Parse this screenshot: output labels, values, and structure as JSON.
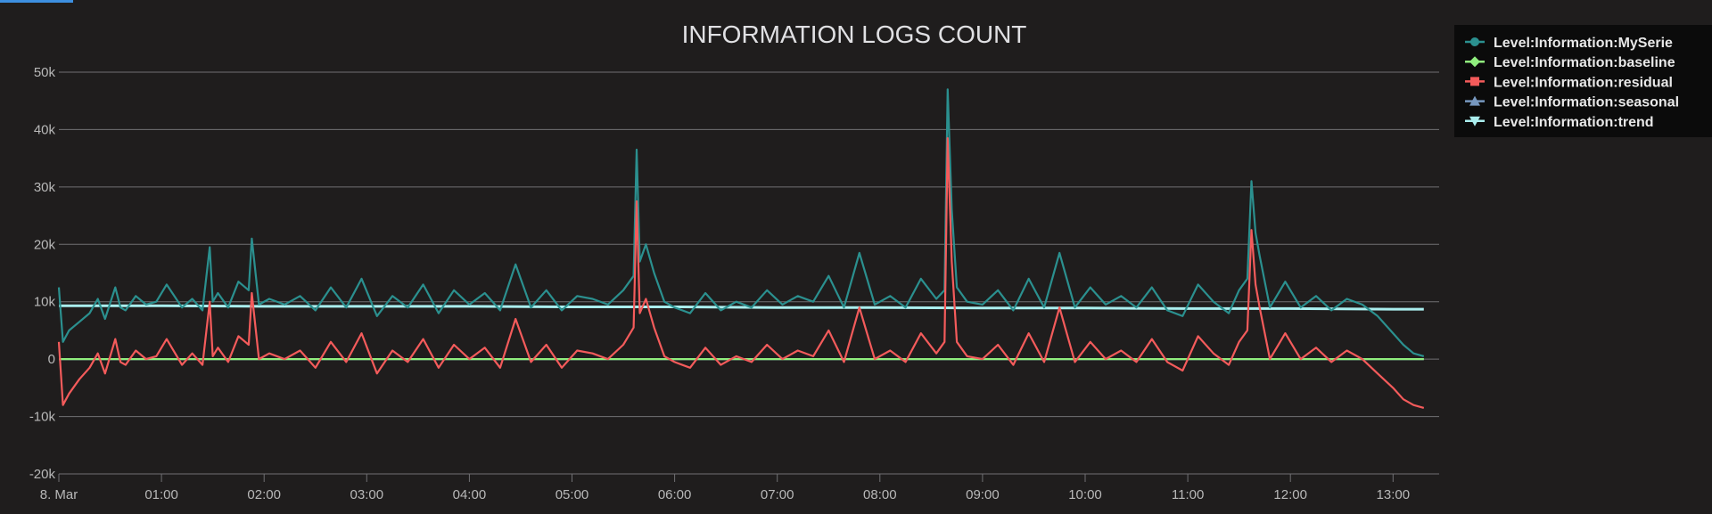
{
  "chart_data": {
    "type": "line",
    "title": "INFORMATION LOGS COUNT",
    "xlabel": "",
    "ylabel": "",
    "ylim": [
      -20000,
      50000
    ],
    "y_ticks": [
      "-20k",
      "-10k",
      "0",
      "10k",
      "20k",
      "30k",
      "40k",
      "50k"
    ],
    "y_tick_values": [
      -20000,
      -10000,
      0,
      10000,
      20000,
      30000,
      40000,
      50000
    ],
    "x_ticks": [
      "8. Mar",
      "01:00",
      "02:00",
      "03:00",
      "04:00",
      "05:00",
      "06:00",
      "07:00",
      "08:00",
      "09:00",
      "10:00",
      "11:00",
      "12:00",
      "13:00"
    ],
    "x_tick_values": [
      0,
      1,
      2,
      3,
      4,
      5,
      6,
      7,
      8,
      9,
      10,
      11,
      12,
      13
    ],
    "x_unit": "hours",
    "xlim": [
      0,
      13.3
    ],
    "grid": true,
    "legend_position": "top-right",
    "series": [
      {
        "name": "Level:Information:MySerie",
        "color": "#2b908f",
        "marker": "circle",
        "x": [
          0,
          0.04,
          0.1,
          0.2,
          0.3,
          0.38,
          0.45,
          0.55,
          0.6,
          0.65,
          0.75,
          0.85,
          0.95,
          1.05,
          1.2,
          1.3,
          1.4,
          1.47,
          1.5,
          1.55,
          1.65,
          1.75,
          1.85,
          1.88,
          1.95,
          2.05,
          2.2,
          2.35,
          2.5,
          2.65,
          2.8,
          2.95,
          3.1,
          3.25,
          3.4,
          3.55,
          3.7,
          3.85,
          4.0,
          4.15,
          4.3,
          4.45,
          4.6,
          4.75,
          4.9,
          5.05,
          5.2,
          5.35,
          5.5,
          5.6,
          5.63,
          5.66,
          5.72,
          5.8,
          5.9,
          6.0,
          6.15,
          6.3,
          6.45,
          6.6,
          6.75,
          6.9,
          7.05,
          7.2,
          7.35,
          7.5,
          7.65,
          7.8,
          7.95,
          8.1,
          8.25,
          8.4,
          8.55,
          8.63,
          8.66,
          8.7,
          8.75,
          8.85,
          9.0,
          9.15,
          9.3,
          9.45,
          9.6,
          9.75,
          9.9,
          10.05,
          10.2,
          10.35,
          10.5,
          10.65,
          10.8,
          10.95,
          11.1,
          11.25,
          11.4,
          11.5,
          11.58,
          11.62,
          11.66,
          11.7,
          11.8,
          11.95,
          12.1,
          12.25,
          12.4,
          12.55,
          12.7,
          12.85,
          13.0,
          13.1,
          13.2,
          13.3
        ],
        "y": [
          12500,
          3000,
          5000,
          6500,
          8000,
          10500,
          7000,
          12500,
          9000,
          8500,
          11000,
          9500,
          10000,
          13000,
          9000,
          10500,
          8500,
          19500,
          10000,
          11500,
          9000,
          13500,
          12000,
          21000,
          9500,
          10500,
          9500,
          11000,
          8500,
          12500,
          9000,
          14000,
          7500,
          11000,
          9000,
          13000,
          8000,
          12000,
          9500,
          11500,
          8500,
          16500,
          9000,
          12000,
          8500,
          11000,
          10500,
          9500,
          12000,
          14500,
          36500,
          17000,
          20000,
          15000,
          10000,
          9000,
          8000,
          11500,
          8500,
          10000,
          9000,
          12000,
          9500,
          11000,
          10000,
          14500,
          9000,
          18500,
          9500,
          11000,
          9000,
          14000,
          10500,
          12000,
          47000,
          26000,
          12500,
          10000,
          9500,
          12000,
          8500,
          14000,
          9000,
          18500,
          9000,
          12500,
          9500,
          11000,
          9000,
          12500,
          8500,
          7500,
          13000,
          10000,
          8000,
          12000,
          14000,
          31000,
          22000,
          18000,
          9000,
          13500,
          9000,
          11000,
          8500,
          10500,
          9500,
          7500,
          4500,
          2500,
          1000,
          500
        ]
      },
      {
        "name": "Level:Information:baseline",
        "color": "#90ee7e",
        "marker": "diamond",
        "x": [
          0,
          13.3
        ],
        "y": [
          0,
          0
        ]
      },
      {
        "name": "Level:Information:residual",
        "color": "#f45b5b",
        "marker": "square",
        "x": [
          0,
          0.04,
          0.1,
          0.2,
          0.3,
          0.38,
          0.45,
          0.55,
          0.6,
          0.65,
          0.75,
          0.85,
          0.95,
          1.05,
          1.2,
          1.3,
          1.4,
          1.47,
          1.5,
          1.55,
          1.65,
          1.75,
          1.85,
          1.88,
          1.95,
          2.05,
          2.2,
          2.35,
          2.5,
          2.65,
          2.8,
          2.95,
          3.1,
          3.25,
          3.4,
          3.55,
          3.7,
          3.85,
          4.0,
          4.15,
          4.3,
          4.45,
          4.6,
          4.75,
          4.9,
          5.05,
          5.2,
          5.35,
          5.5,
          5.6,
          5.63,
          5.66,
          5.72,
          5.8,
          5.9,
          6.0,
          6.15,
          6.3,
          6.45,
          6.6,
          6.75,
          6.9,
          7.05,
          7.2,
          7.35,
          7.5,
          7.65,
          7.8,
          7.95,
          8.1,
          8.25,
          8.4,
          8.55,
          8.63,
          8.66,
          8.7,
          8.75,
          8.85,
          9.0,
          9.15,
          9.3,
          9.45,
          9.6,
          9.75,
          9.9,
          10.05,
          10.2,
          10.35,
          10.5,
          10.65,
          10.8,
          10.95,
          11.1,
          11.25,
          11.4,
          11.5,
          11.58,
          11.62,
          11.66,
          11.7,
          11.8,
          11.95,
          12.1,
          12.25,
          12.4,
          12.55,
          12.7,
          12.85,
          13.0,
          13.1,
          13.2,
          13.3
        ],
        "y": [
          3000,
          -8000,
          -6000,
          -3500,
          -1500,
          1000,
          -2500,
          3500,
          -500,
          -1000,
          1500,
          0,
          500,
          3500,
          -1000,
          1000,
          -1000,
          10000,
          500,
          2000,
          -500,
          4000,
          2500,
          11500,
          0,
          1000,
          0,
          1500,
          -1500,
          3000,
          -500,
          4500,
          -2500,
          1500,
          -500,
          3500,
          -1500,
          2500,
          0,
          2000,
          -1500,
          7000,
          -500,
          2500,
          -1500,
          1500,
          1000,
          0,
          2500,
          5500,
          27500,
          8000,
          10500,
          5500,
          500,
          -500,
          -1500,
          2000,
          -1000,
          500,
          -500,
          2500,
          0,
          1500,
          500,
          5000,
          -500,
          9000,
          0,
          1500,
          -500,
          4500,
          1000,
          3000,
          38500,
          17000,
          3000,
          500,
          0,
          2500,
          -1000,
          4500,
          -500,
          9000,
          -500,
          3000,
          0,
          1500,
          -500,
          3500,
          -500,
          -2000,
          4000,
          1000,
          -1000,
          3000,
          5000,
          22500,
          13000,
          9000,
          0,
          4500,
          0,
          2000,
          -500,
          1500,
          0,
          -2500,
          -5000,
          -7000,
          -8000,
          -8500
        ]
      },
      {
        "name": "Level:Information:seasonal",
        "color": "#7798bf",
        "marker": "triangle",
        "x": [
          0,
          13.3
        ],
        "y": [
          0,
          0
        ]
      },
      {
        "name": "Level:Information:trend",
        "color": "#aaeeee",
        "marker": "triangle-down",
        "x": [
          0,
          1,
          2,
          3,
          4,
          5,
          6,
          7,
          8,
          9,
          10,
          11,
          12,
          13,
          13.3
        ],
        "y": [
          9300,
          9300,
          9200,
          9200,
          9200,
          9100,
          9100,
          9000,
          9000,
          8900,
          8900,
          8800,
          8800,
          8700,
          8700
        ]
      }
    ]
  }
}
